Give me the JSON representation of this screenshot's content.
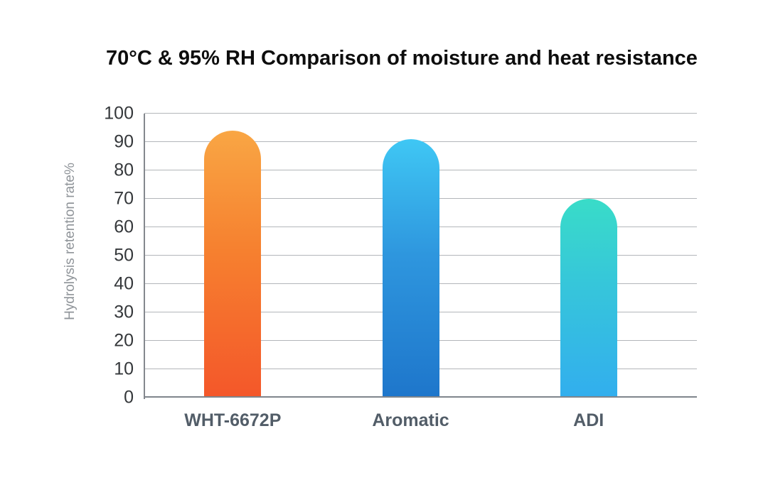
{
  "chart_data": {
    "type": "bar",
    "title": "70°C & 95% RH Comparison of moisture and heat resistance",
    "categories": [
      "WHT-6672P",
      "Aromatic",
      "ADI"
    ],
    "values": [
      94,
      91,
      70
    ],
    "xlabel": "",
    "ylabel": "Hydrolysis retention rate%",
    "ylim": [
      0,
      100
    ],
    "yticks": [
      0,
      10,
      20,
      30,
      40,
      50,
      60,
      70,
      80,
      90,
      100
    ],
    "grid": true,
    "legend_position": "none",
    "bar_gradients": [
      {
        "name": "orange",
        "stops": [
          "#F9A644",
          "#F6802F",
          "#F4572A"
        ]
      },
      {
        "name": "blue",
        "stops": [
          "#3FC7F4",
          "#2E96DE",
          "#1E76CB"
        ]
      },
      {
        "name": "teal-to-blue",
        "stops": [
          "#39DCC8",
          "#36C5DB",
          "#32AEEE"
        ]
      }
    ],
    "colors": {
      "background": "#ffffff",
      "gridline": "#b3b6ba",
      "axis": "#7f858c",
      "tick_label": "#35383b",
      "category_label": "#525d68",
      "ylabel_color": "#8f9499",
      "title_color": "#0d0d0d"
    }
  }
}
